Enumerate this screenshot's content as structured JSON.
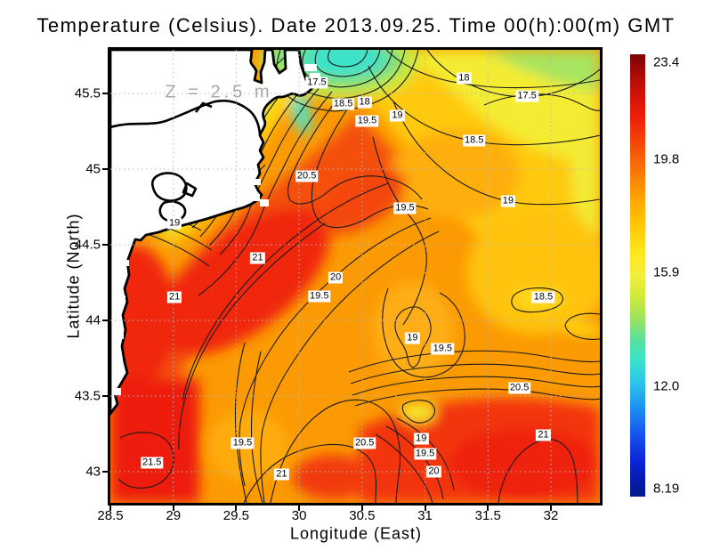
{
  "title": "Temperature (Celsius). Date 2013.09.25. Time 00(h):00(m) GMT",
  "annotation": "Z = 2.5 m",
  "axes": {
    "x_label": "Longitude (East)",
    "y_label": "Latitude (North)"
  },
  "colorbar": {
    "max": 23.4,
    "min": 8.19,
    "tick_labels": [
      "23.4",
      "19.8",
      "15.9",
      "12.0",
      "8.19"
    ]
  },
  "chart_data": {
    "type": "heatmap",
    "subtype": "filled-contour-map",
    "title": "Temperature (Celsius). Date 2013.09.25. Time 00(h):00(m) GMT",
    "variable": "Temperature (Celsius)",
    "depth_annotation": "Z = 2.5 m",
    "date": "2013.09.25",
    "time": "00(h):00(m) GMT",
    "xlabel": "Longitude (East)",
    "ylabel": "Latitude (North)",
    "xlim": [
      28.5,
      32.39
    ],
    "ylim": [
      42.79,
      45.79
    ],
    "x_ticks": [
      28.5,
      29,
      29.5,
      30,
      30.5,
      31,
      31.5,
      32
    ],
    "y_ticks": [
      45.5,
      45,
      44.5,
      44,
      43.5,
      43
    ],
    "grid": true,
    "colorbar_range": [
      8.19,
      23.4
    ],
    "colorbar_tick_values": [
      23.4,
      19.8,
      15.9,
      12.0,
      8.19
    ],
    "contour_interval": 0.5,
    "contour_levels": [
      17.5,
      18,
      18.5,
      19,
      19.5,
      20,
      20.5,
      21,
      21.5
    ],
    "labeled_contours": [
      {
        "v": "17.5",
        "lon": 30.14,
        "lat": 45.57
      },
      {
        "v": "18.5",
        "lon": 30.35,
        "lat": 45.43
      },
      {
        "v": "18",
        "lon": 30.52,
        "lat": 45.44
      },
      {
        "v": "19.5",
        "lon": 30.54,
        "lat": 45.32
      },
      {
        "v": "19",
        "lon": 30.78,
        "lat": 45.35
      },
      {
        "v": "18",
        "lon": 31.31,
        "lat": 45.6
      },
      {
        "v": "17.5",
        "lon": 31.81,
        "lat": 45.48
      },
      {
        "v": "18.5",
        "lon": 31.39,
        "lat": 45.19
      },
      {
        "v": "20.5",
        "lon": 30.06,
        "lat": 44.95
      },
      {
        "v": "19",
        "lon": 29.01,
        "lat": 44.64
      },
      {
        "v": "19",
        "lon": 31.66,
        "lat": 44.79
      },
      {
        "v": "19.5",
        "lon": 30.84,
        "lat": 44.74
      },
      {
        "v": "21",
        "lon": 29.67,
        "lat": 44.41
      },
      {
        "v": "20",
        "lon": 30.29,
        "lat": 44.28
      },
      {
        "v": "21",
        "lon": 29.01,
        "lat": 44.15
      },
      {
        "v": "19.5",
        "lon": 30.16,
        "lat": 44.16
      },
      {
        "v": "18.5",
        "lon": 31.94,
        "lat": 44.15
      },
      {
        "v": "19",
        "lon": 30.9,
        "lat": 43.88
      },
      {
        "v": "19.5",
        "lon": 31.14,
        "lat": 43.81
      },
      {
        "v": "20.5",
        "lon": 31.75,
        "lat": 43.55
      },
      {
        "v": "20.5",
        "lon": 30.52,
        "lat": 43.19
      },
      {
        "v": "21",
        "lon": 31.94,
        "lat": 43.24
      },
      {
        "v": "21.5",
        "lon": 28.83,
        "lat": 43.06
      },
      {
        "v": "19.5",
        "lon": 29.55,
        "lat": 43.19
      },
      {
        "v": "19",
        "lon": 30.97,
        "lat": 43.22
      },
      {
        "v": "19.5",
        "lon": 31.0,
        "lat": 43.12
      },
      {
        "v": "20",
        "lon": 31.07,
        "lat": 43.0
      },
      {
        "v": "21",
        "lon": 29.86,
        "lat": 42.98
      }
    ]
  }
}
